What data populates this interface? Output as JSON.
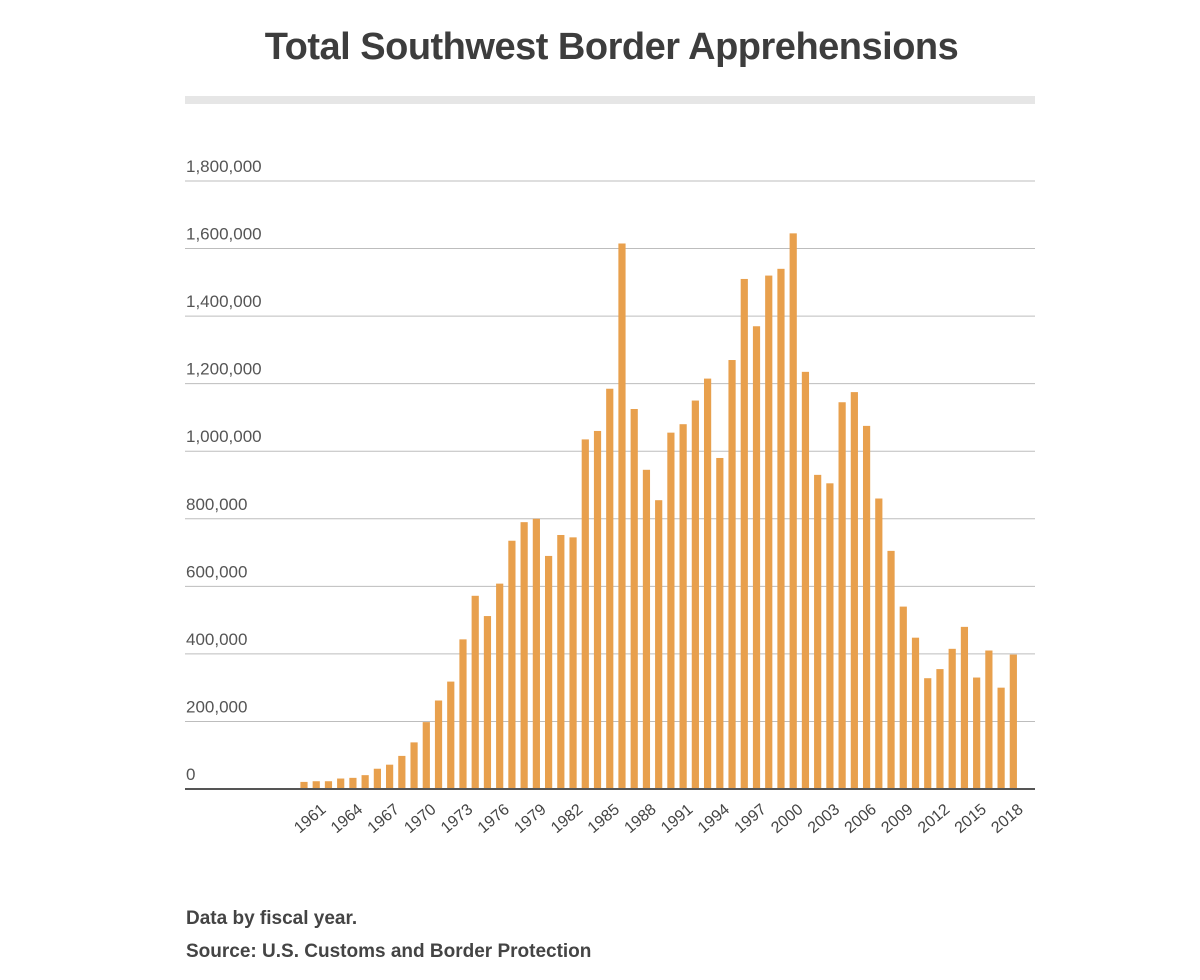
{
  "chart_data": {
    "type": "bar",
    "title": "Total Southwest Border Apprehensions",
    "xlabel": "",
    "ylabel": "",
    "ylim": [
      0,
      1800000
    ],
    "y_ticks": [
      0,
      200000,
      400000,
      600000,
      800000,
      1000000,
      1200000,
      1400000,
      1600000,
      1800000
    ],
    "y_tick_labels": [
      "0",
      "200,000",
      "400,000",
      "600,000",
      "800,000",
      "1,000,000",
      "1,200,000",
      "1,400,000",
      "1,600,000",
      "1,800,000"
    ],
    "x_tick_labels": [
      "1961",
      "1964",
      "1967",
      "1970",
      "1973",
      "1976",
      "1979",
      "1982",
      "1985",
      "1988",
      "1991",
      "1994",
      "1997",
      "2000",
      "2003",
      "2006",
      "2009",
      "2012",
      "2015",
      "2018"
    ],
    "bar_color": "#e8a04d",
    "series": [
      {
        "name": "Apprehensions",
        "years": [
          1960,
          1961,
          1962,
          1963,
          1964,
          1965,
          1966,
          1967,
          1968,
          1969,
          1970,
          1971,
          1972,
          1973,
          1974,
          1975,
          1976,
          1977,
          1978,
          1979,
          1980,
          1981,
          1982,
          1983,
          1984,
          1985,
          1986,
          1987,
          1988,
          1989,
          1990,
          1991,
          1992,
          1993,
          1994,
          1995,
          1996,
          1997,
          1998,
          1999,
          2000,
          2001,
          2002,
          2003,
          2004,
          2005,
          2006,
          2007,
          2008,
          2009,
          2010,
          2011,
          2012,
          2013,
          2014,
          2015,
          2016,
          2017,
          2018
        ],
        "values": [
          21000,
          23000,
          23000,
          31000,
          33000,
          41000,
          60000,
          72000,
          98000,
          138000,
          198000,
          262000,
          318000,
          443000,
          572000,
          512000,
          608000,
          735000,
          790000,
          800000,
          690000,
          752000,
          745000,
          1035000,
          1060000,
          1185000,
          1615000,
          1125000,
          945000,
          855000,
          1055000,
          1080000,
          1150000,
          1215000,
          980000,
          1270000,
          1510000,
          1370000,
          1520000,
          1540000,
          1645000,
          1235000,
          930000,
          905000,
          1145000,
          1175000,
          1075000,
          860000,
          705000,
          540000,
          448000,
          328000,
          355000,
          415000,
          480000,
          330000,
          410000,
          300000,
          398000
        ]
      }
    ]
  },
  "footnotes": {
    "line1": "Data by fiscal year.",
    "line2": "Source: U.S. Customs and Border Protection"
  }
}
